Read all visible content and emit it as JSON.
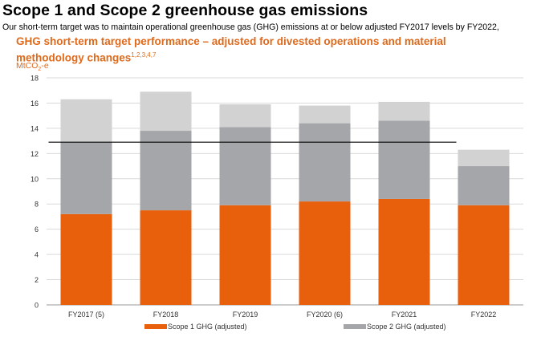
{
  "header": {
    "title": "Scope 1 and Scope 2 greenhouse gas emissions",
    "subtitle": "Our short-term target was to maintain operational greenhouse gas (GHG) emissions at or below adjusted FY2017 levels by FY2022,"
  },
  "chart_data": {
    "type": "bar",
    "stacked": true,
    "title": "GHG short-term target performance – adjusted for divested operations and material methodology changes",
    "title_superscript": "1,2,3,4,7",
    "unit_label_prefix": "MtCO",
    "unit_label_sub": "2",
    "unit_label_suffix": "-e",
    "categories": [
      "FY2017 (5)",
      "FY2018",
      "FY2019",
      "FY2020 (6)",
      "FY2021",
      "FY2022"
    ],
    "series": [
      {
        "name": "Scope 1 GHG (adjusted)",
        "color": "#e85f0c",
        "values": [
          7.2,
          7.5,
          7.9,
          8.2,
          8.4,
          7.9
        ]
      },
      {
        "name": "Scope 2 GHG (adjusted)",
        "color": "#a5a6a9",
        "values": [
          5.7,
          6.3,
          6.2,
          6.2,
          6.2,
          3.1
        ]
      },
      {
        "color": "#d2d2d3",
        "values": [
          3.4,
          3.1,
          1.8,
          1.4,
          1.5,
          1.3
        ]
      }
    ],
    "target_line": {
      "value": 12.9,
      "color": "#000000"
    },
    "ylim": [
      0,
      18
    ],
    "yticks": [
      0,
      2,
      4,
      6,
      8,
      10,
      12,
      14,
      16,
      18
    ],
    "grid": true,
    "legend_position": "bottom"
  }
}
